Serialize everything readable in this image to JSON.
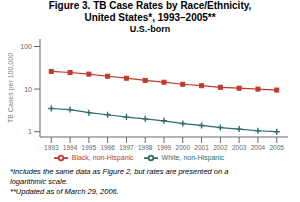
{
  "chart_data": {
    "type": "line",
    "title": "Figure 3. TB Case Rates by Race/Ethnicity,\nUnited States*, 1993–2005**",
    "subtitle": "U.S.-born",
    "y_label": "TB Cases per 100,000",
    "x": [
      1993,
      1994,
      1995,
      1996,
      1997,
      1998,
      1999,
      2000,
      2001,
      2002,
      2003,
      2004,
      2005
    ],
    "series": [
      {
        "name": "Black, non-Hispanic",
        "color": "#c0392b",
        "marker": "square",
        "values": [
          26.0,
          24.5,
          22.5,
          20.0,
          18.0,
          16.0,
          14.5,
          13.0,
          12.0,
          11.0,
          10.5,
          10.0,
          9.5
        ]
      },
      {
        "name": "White, non-Hispanic",
        "color": "#2e6b6b",
        "marker": "plus",
        "values": [
          3.5,
          3.3,
          2.8,
          2.5,
          2.2,
          2.0,
          1.8,
          1.55,
          1.4,
          1.25,
          1.15,
          1.05,
          1.0
        ]
      }
    ],
    "xlim": [
      1992.4,
      2005.6
    ],
    "xticks": [
      1993,
      1994,
      1995,
      1996,
      1997,
      1998,
      1999,
      2000,
      2001,
      2002,
      2003,
      2004,
      2005
    ],
    "ylim": [
      0.75,
      150
    ],
    "yticks": [
      1,
      10,
      100
    ],
    "log": "y",
    "grid": false,
    "legend": "bottom",
    "annotations": [
      "*Includes the same data as Figure 2, but rates are presented on a",
      "logarithmic scale.",
      "**Updated as of March 29, 2006."
    ]
  }
}
